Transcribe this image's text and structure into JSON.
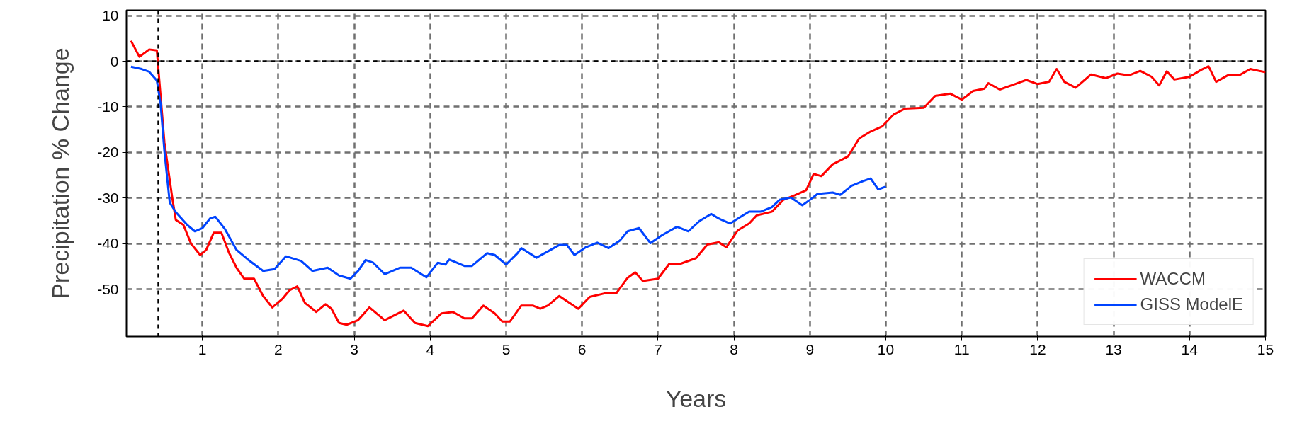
{
  "chart_data": {
    "type": "line",
    "xlabel": "Years",
    "ylabel": "Precipitation % Change",
    "xlim": [
      0,
      15
    ],
    "ylim": [
      -60.4,
      11.2
    ],
    "xticks": [
      1,
      2,
      3,
      4,
      5,
      6,
      7,
      8,
      9,
      10,
      11,
      12,
      13,
      14,
      15
    ],
    "yticks": [
      10,
      0,
      -10,
      -20,
      -30,
      -40,
      -50
    ],
    "grid": true,
    "legend": "bottom right",
    "line_style": "solid",
    "marker": "none",
    "ref_lines": [
      {
        "axis": "y",
        "value": 0,
        "color": "#000000",
        "line_style": "dashed"
      },
      {
        "axis": "x",
        "value": 0.42,
        "color": "#000000",
        "line_style": "dashed"
      }
    ],
    "series": [
      {
        "name": "WACCM",
        "color": "#ff0000",
        "x": [
          0.06,
          0.17,
          0.3,
          0.4,
          0.5,
          0.6,
          0.65,
          0.75,
          0.85,
          0.97,
          1.05,
          1.15,
          1.25,
          1.35,
          1.45,
          1.55,
          1.68,
          1.8,
          1.92,
          2.05,
          2.15,
          2.25,
          2.35,
          2.5,
          2.62,
          2.7,
          2.8,
          2.9,
          3.05,
          3.2,
          3.4,
          3.65,
          3.8,
          3.97,
          4.15,
          4.3,
          4.45,
          4.55,
          4.7,
          4.85,
          4.95,
          5.05,
          5.2,
          5.35,
          5.45,
          5.55,
          5.7,
          5.95,
          6.1,
          6.3,
          6.45,
          6.6,
          6.7,
          6.8,
          7.0,
          7.15,
          7.3,
          7.5,
          7.65,
          7.8,
          7.9,
          8.05,
          8.2,
          8.3,
          8.5,
          8.65,
          8.8,
          8.95,
          9.05,
          9.15,
          9.3,
          9.5,
          9.65,
          9.8,
          9.95,
          10.1,
          10.25,
          10.5,
          10.65,
          10.85,
          11.0,
          11.15,
          11.3,
          11.35,
          11.5,
          11.7,
          11.85,
          12.0,
          12.15,
          12.25,
          12.35,
          12.5,
          12.7,
          12.9,
          13.05,
          13.2,
          13.35,
          13.5,
          13.6,
          13.7,
          13.8,
          14.0,
          14.15,
          14.25,
          14.35,
          14.5,
          14.65,
          14.8,
          15.0
        ],
        "values": [
          4.5,
          1,
          2.6,
          2.4,
          -17.8,
          -29.6,
          -34.8,
          -35.9,
          -40,
          -42.5,
          -41.4,
          -37.6,
          -37.6,
          -42,
          -45.3,
          -47.7,
          -47.7,
          -51.5,
          -54,
          -52.2,
          -50.2,
          -49.4,
          -53,
          -55,
          -53.3,
          -54.3,
          -57.4,
          -57.8,
          -56.8,
          -54,
          -56.8,
          -54.7,
          -57.4,
          -58.1,
          -55.3,
          -55,
          -56.4,
          -56.4,
          -53.6,
          -55.3,
          -57.1,
          -57.1,
          -53.6,
          -53.6,
          -54.3,
          -53.6,
          -51.5,
          -54.3,
          -51.7,
          -50.9,
          -50.9,
          -47.5,
          -46.3,
          -48.2,
          -47.7,
          -44.4,
          -44.4,
          -43.2,
          -40.2,
          -39.7,
          -40.8,
          -37.1,
          -35.6,
          -33.8,
          -33,
          -30.4,
          -29.4,
          -28.3,
          -24.7,
          -25.2,
          -22.6,
          -20.9,
          -16.9,
          -15.4,
          -14.3,
          -11.7,
          -10.4,
          -10.2,
          -7.6,
          -7.1,
          -8.4,
          -6.5,
          -6,
          -4.8,
          -6.2,
          -5,
          -4.1,
          -5,
          -4.5,
          -1.7,
          -4.5,
          -5.8,
          -2.9,
          -3.7,
          -2.7,
          -3.1,
          -2.1,
          -3.4,
          -5.3,
          -2.2,
          -4,
          -3.4,
          -1.9,
          -1.1,
          -4.5,
          -3.1,
          -3.1,
          -1.7,
          -2.4
        ]
      },
      {
        "name": "GISS ModelE",
        "color": "#0044ff",
        "x": [
          0.06,
          0.2,
          0.3,
          0.4,
          0.45,
          0.5,
          0.57,
          0.65,
          0.8,
          0.9,
          1.0,
          1.1,
          1.17,
          1.3,
          1.45,
          1.6,
          1.8,
          1.95,
          2.1,
          2.3,
          2.45,
          2.65,
          2.8,
          2.95,
          3.05,
          3.15,
          3.25,
          3.4,
          3.6,
          3.75,
          3.95,
          4.1,
          4.2,
          4.25,
          4.45,
          4.55,
          4.75,
          4.85,
          5.0,
          5.15,
          5.2,
          5.4,
          5.55,
          5.7,
          5.8,
          5.9,
          6.05,
          6.2,
          6.35,
          6.5,
          6.6,
          6.75,
          6.9,
          7.05,
          7.25,
          7.4,
          7.55,
          7.7,
          7.8,
          7.95,
          8.1,
          8.2,
          8.35,
          8.5,
          8.6,
          8.75,
          8.9,
          9.0,
          9.1,
          9.3,
          9.4,
          9.55,
          9.7,
          9.8,
          9.9,
          10.0
        ],
        "values": [
          -1.2,
          -1.7,
          -2.3,
          -4.2,
          -9.4,
          -19.8,
          -31,
          -33.1,
          -35.9,
          -37.3,
          -36.6,
          -34.5,
          -34.1,
          -36.9,
          -41.4,
          -43.5,
          -46,
          -45.6,
          -42.8,
          -43.8,
          -46,
          -45.3,
          -47,
          -47.7,
          -46,
          -43.6,
          -44.2,
          -46.7,
          -45.3,
          -45.3,
          -47.4,
          -44.2,
          -44.6,
          -43.5,
          -44.9,
          -44.9,
          -42.1,
          -42.5,
          -44.6,
          -42.1,
          -41,
          -43.1,
          -41.7,
          -40.3,
          -40.3,
          -42.5,
          -40.8,
          -39.8,
          -41,
          -39.3,
          -37.3,
          -36.6,
          -39.9,
          -38.2,
          -36.3,
          -37.3,
          -35,
          -33.5,
          -34.5,
          -35.6,
          -34,
          -33,
          -33,
          -32,
          -30.4,
          -29.9,
          -31.6,
          -30.4,
          -29.1,
          -28.8,
          -29.3,
          -27.3,
          -26.3,
          -25.7,
          -28.1,
          -27.5
        ]
      }
    ]
  }
}
